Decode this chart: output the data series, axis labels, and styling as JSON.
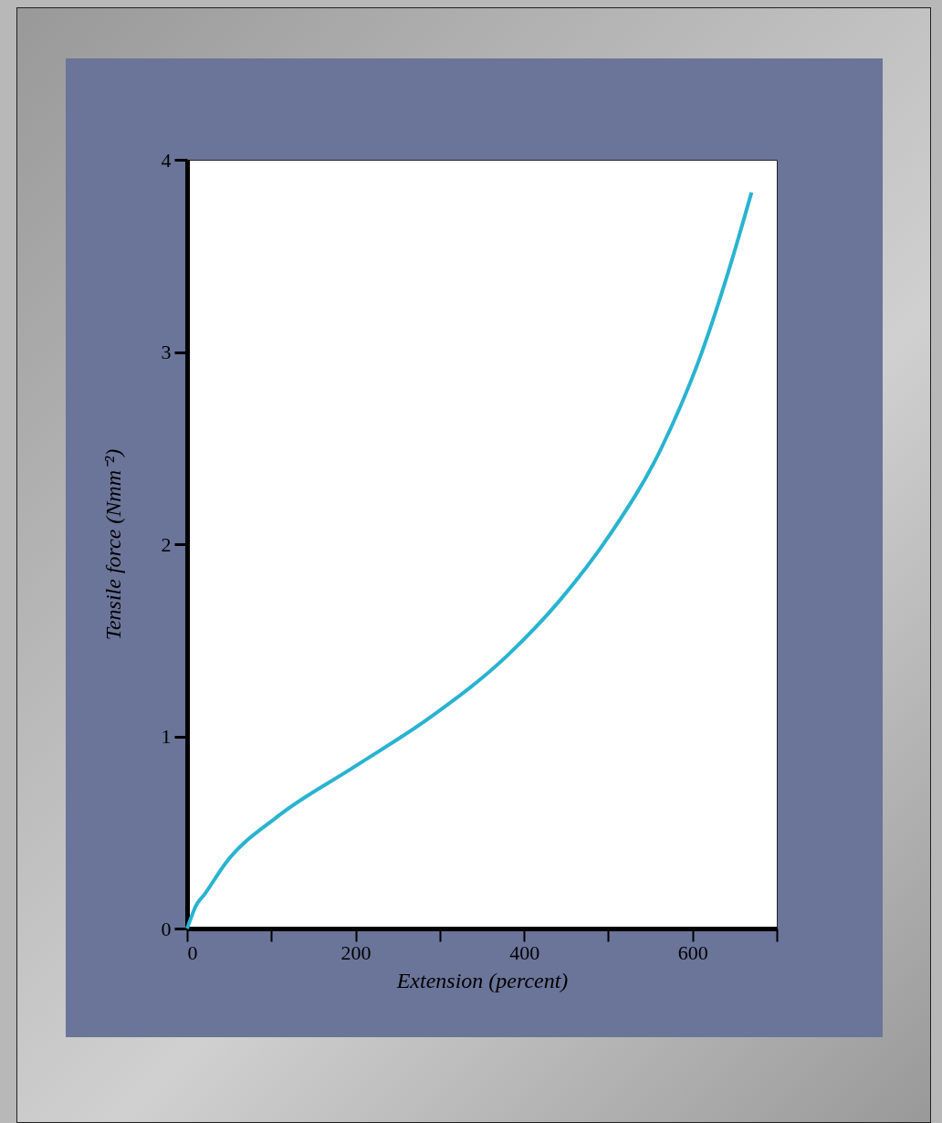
{
  "chart_data": {
    "type": "line",
    "xlabel": "Extension (percent)",
    "ylabel": "Tensile force (Nmm⁻²)",
    "x": [
      0,
      5,
      10,
      21,
      45.6,
      106.5,
      198,
      289,
      380,
      441,
      502,
      563,
      612,
      642,
      670
    ],
    "series": [
      {
        "color": "#29b3d1",
        "values": [
          0,
          0.06,
          0.115,
          0.18,
          0.34,
          0.58,
          0.84,
          1.1,
          1.42,
          1.7,
          2.05,
          2.5,
          3.01,
          3.41,
          3.83
        ]
      }
    ],
    "xlim": [
      0,
      700
    ],
    "xticks": [
      0,
      {
        "value": 100,
        "label": null
      },
      200,
      {
        "value": 300,
        "label": null
      },
      400,
      {
        "value": 500,
        "label": null
      },
      600,
      {
        "value": 700,
        "label": null
      }
    ],
    "ylim": [
      0,
      4
    ],
    "yticks": [
      0,
      1,
      2,
      3,
      4
    ],
    "grid": false,
    "legend": false,
    "marker": "none",
    "line_style": "solid"
  }
}
